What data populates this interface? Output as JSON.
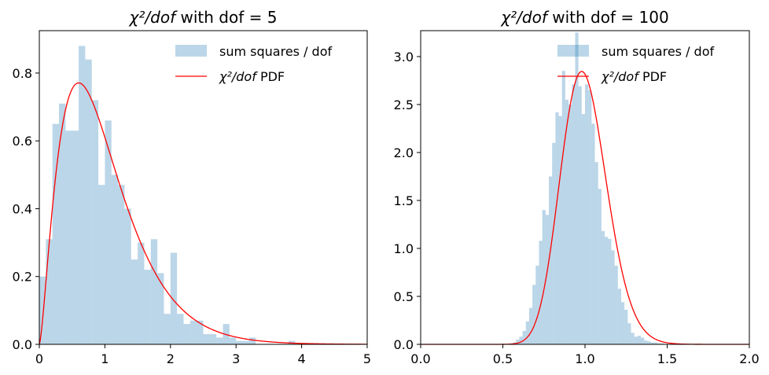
{
  "chart_data": [
    {
      "type": "bar",
      "title_main": "χ²/dof",
      "title_rest": " with dof = 5",
      "xlabel": "",
      "ylabel": "",
      "xlim": [
        0,
        5
      ],
      "ylim": [
        0,
        0.925
      ],
      "xticks": [
        0,
        1,
        2,
        3,
        4,
        5
      ],
      "xtick_labels": [
        "0",
        "1",
        "2",
        "3",
        "4",
        "5"
      ],
      "yticks": [
        0.0,
        0.2,
        0.4,
        0.6,
        0.8
      ],
      "ytick_labels": [
        "0.0",
        "0.2",
        "0.4",
        "0.6",
        "0.8"
      ],
      "grid": false,
      "legend_placement": "top-right",
      "legend": {
        "hist_label": "sum squares / dof",
        "pdf_label_math": "χ²/dof",
        "pdf_label_rest": " PDF"
      },
      "colors": {
        "hist": "#1f77b4",
        "pdf": "#ff0000"
      },
      "hist_alpha": 0.3,
      "dof": 5,
      "hist_bin_width": 0.1,
      "hist_bin_starts": [
        0.0,
        0.1,
        0.2,
        0.3,
        0.4,
        0.5,
        0.6,
        0.7,
        0.8,
        0.9,
        1.0,
        1.1,
        1.2,
        1.3,
        1.4,
        1.5,
        1.6,
        1.7,
        1.8,
        1.9,
        2.0,
        2.1,
        2.2,
        2.3,
        2.4,
        2.5,
        2.6,
        2.7,
        2.8,
        2.9,
        3.0,
        3.1,
        3.2,
        3.3,
        3.4,
        3.5,
        3.6,
        3.7,
        3.8,
        3.9
      ],
      "hist_values": [
        0.2,
        0.31,
        0.65,
        0.71,
        0.63,
        0.63,
        0.88,
        0.84,
        0.72,
        0.47,
        0.66,
        0.5,
        0.47,
        0.4,
        0.25,
        0.3,
        0.22,
        0.31,
        0.21,
        0.09,
        0.27,
        0.09,
        0.06,
        0.07,
        0.07,
        0.03,
        0.03,
        0.02,
        0.06,
        0.02,
        0.01,
        0.01,
        0.02,
        0.0,
        0.0,
        0.0,
        0.0,
        0.0,
        0.01,
        0.0
      ]
    },
    {
      "type": "bar",
      "title_main": "χ²/dof",
      "title_rest": " with dof = 100",
      "xlabel": "",
      "ylabel": "",
      "xlim": [
        0.0,
        2.0
      ],
      "ylim": [
        0,
        3.27
      ],
      "xticks": [
        0.0,
        0.5,
        1.0,
        1.5,
        2.0
      ],
      "xtick_labels": [
        "0.0",
        "0.5",
        "1.0",
        "1.5",
        "2.0"
      ],
      "yticks": [
        0.0,
        0.5,
        1.0,
        1.5,
        2.0,
        2.5,
        3.0
      ],
      "ytick_labels": [
        "0.0",
        "0.5",
        "1.0",
        "1.5",
        "2.0",
        "2.5",
        "3.0"
      ],
      "grid": false,
      "legend_placement": "top-right",
      "legend": {
        "hist_label": "sum squares / dof",
        "pdf_label_math": "χ²/dof",
        "pdf_label_rest": " PDF"
      },
      "colors": {
        "hist": "#1f77b4",
        "pdf": "#ff0000"
      },
      "hist_alpha": 0.3,
      "dof": 100,
      "hist_bin_width": 0.02,
      "hist_bin_starts": [
        0.56,
        0.58,
        0.6,
        0.62,
        0.64,
        0.66,
        0.68,
        0.7,
        0.72,
        0.74,
        0.76,
        0.78,
        0.8,
        0.82,
        0.84,
        0.86,
        0.88,
        0.9,
        0.92,
        0.94,
        0.96,
        0.98,
        1.0,
        1.02,
        1.04,
        1.06,
        1.08,
        1.1,
        1.12,
        1.14,
        1.16,
        1.18,
        1.2,
        1.22,
        1.24,
        1.26,
        1.28,
        1.3,
        1.32,
        1.34,
        1.36,
        1.38,
        1.4,
        1.42,
        1.44,
        1.46
      ],
      "hist_values": [
        0.02,
        0.05,
        0.08,
        0.14,
        0.24,
        0.38,
        0.62,
        0.82,
        1.08,
        1.4,
        1.35,
        1.75,
        2.1,
        2.42,
        2.38,
        2.85,
        2.55,
        2.5,
        2.71,
        3.25,
        2.69,
        2.4,
        2.71,
        2.65,
        2.3,
        1.9,
        1.62,
        1.18,
        1.12,
        1.1,
        0.98,
        0.82,
        0.58,
        0.44,
        0.36,
        0.22,
        0.12,
        0.08,
        0.09,
        0.07,
        0.04,
        0.03,
        0.02,
        0.02,
        0.01,
        0.01
      ]
    }
  ]
}
